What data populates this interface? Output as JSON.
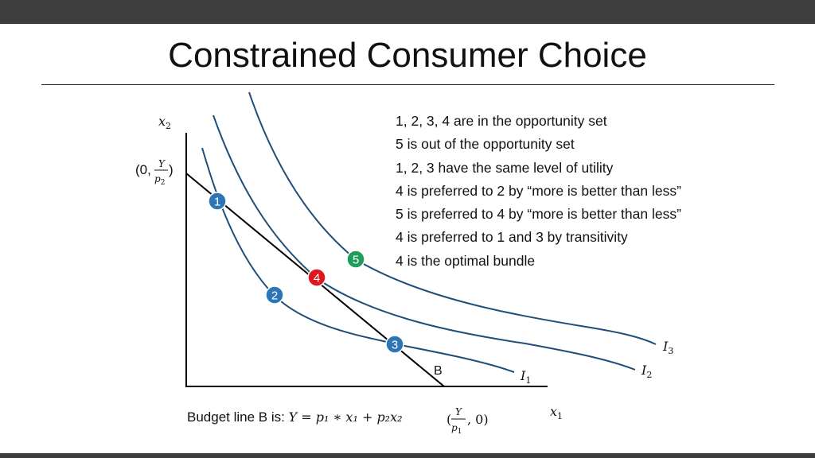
{
  "slide": {
    "title": "Constrained Consumer Choice"
  },
  "axes": {
    "x_label_base": "x",
    "x_label_sub": "1",
    "y_label_base": "x",
    "y_label_sub": "2"
  },
  "intercepts": {
    "y_intercept_prefix": "(0,",
    "y_intercept_num": "Y",
    "y_intercept_den_base": "p",
    "y_intercept_den_sub": "2",
    "y_intercept_suffix": ")",
    "x_intercept_prefix": "(",
    "x_intercept_num": "Y",
    "x_intercept_den_base": "p",
    "x_intercept_den_sub": "1",
    "x_intercept_suffix": ", 0)"
  },
  "budget_line": {
    "label": "B",
    "caption": "Budget line B is: ",
    "equation": "Y = p₁ ∗ x₁ + p₂x₂"
  },
  "indifference_curves": [
    {
      "base": "I",
      "sub": "1"
    },
    {
      "base": "I",
      "sub": "2"
    },
    {
      "base": "I",
      "sub": "3"
    }
  ],
  "points": [
    {
      "label": "1",
      "color": "#2e75b6"
    },
    {
      "label": "2",
      "color": "#2e75b6"
    },
    {
      "label": "3",
      "color": "#2e75b6"
    },
    {
      "label": "4",
      "color": "#e0161e"
    },
    {
      "label": "5",
      "color": "#1e9e5a"
    }
  ],
  "colors": {
    "curve": "#1f4e79",
    "axis": "#000000",
    "header_bar": "#3d3d3d"
  },
  "statements": [
    "1, 2, 3, 4 are in the opportunity set",
    "5 is out of the opportunity set",
    "1, 2, 3 have the same level of utility",
    "4 is preferred to 2 by “more is better than less”",
    "5 is preferred to 4 by “more is better than less”",
    "4 is preferred to 1 and 3 by transitivity",
    "4 is the optimal bundle"
  ]
}
